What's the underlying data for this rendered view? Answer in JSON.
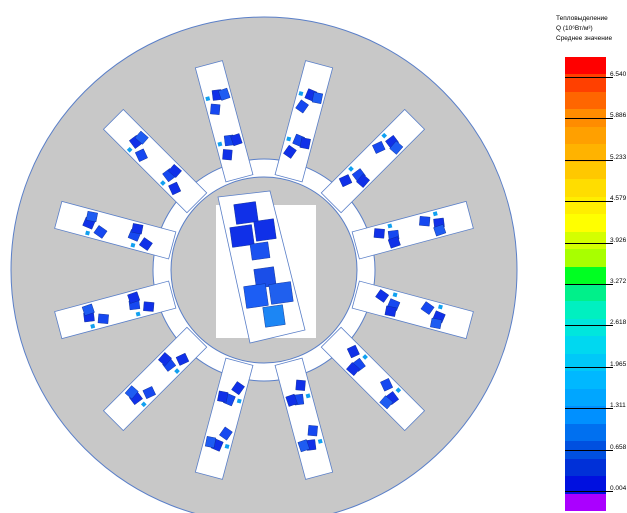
{
  "legend": {
    "title": "Тепловыделение",
    "units_line": "Q (10⁶Вт/м³)",
    "mode": "Среднее значение",
    "ticks": [
      "6.540",
      "5.886",
      "5.233",
      "4.579",
      "3.926",
      "3.272",
      "2.618",
      "1.965",
      "1.311",
      "0.658",
      "0.004"
    ],
    "colors": [
      "#ff0000",
      "#ff4000",
      "#ff6600",
      "#ff8c00",
      "#ffa000",
      "#ffb300",
      "#ffc800",
      "#ffdd00",
      "#ffee00",
      "#ffff00",
      "#d4ff00",
      "#a8ff00",
      "#00ff22",
      "#00f08a",
      "#00f0c0",
      "#00e6dd",
      "#00d8f0",
      "#00c8f8",
      "#00b8ff",
      "#00a6ff",
      "#0090ff",
      "#0070f0",
      "#0050e0",
      "#0030d8",
      "#0010e0",
      "#aa00ff"
    ]
  },
  "model": {
    "colors": {
      "steel": "#c8c8c8",
      "outline": "#5a7fc8",
      "background": "#ffffff",
      "coil": "#1030e8",
      "coil_hot": "#10a0f0"
    },
    "stator_slots": 12
  }
}
